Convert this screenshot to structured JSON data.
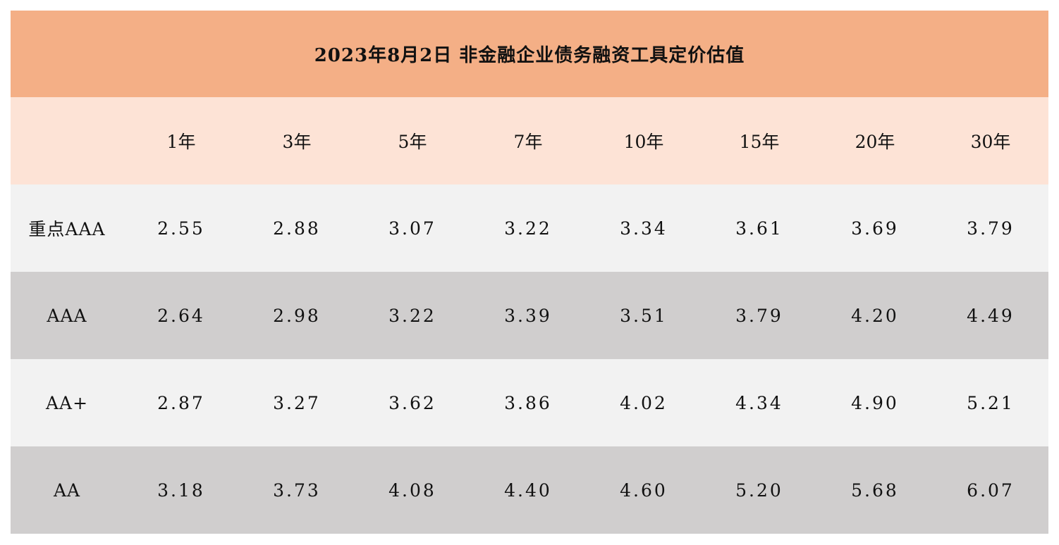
{
  "title": "2023年8月2日  非金融企业债务融资工具定价估值",
  "colors": {
    "title_bg": "#F4AF86",
    "header_bg": "#FDE3D6",
    "row_light": "#F2F2F2",
    "row_dark": "#D0CECE"
  },
  "columns": [
    "",
    "1年",
    "3年",
    "5年",
    "7年",
    "10年",
    "15年",
    "20年",
    "30年"
  ],
  "rows": [
    {
      "label": "重点AAA",
      "values": [
        "2.55",
        "2.88",
        "3.07",
        "3.22",
        "3.34",
        "3.61",
        "3.69",
        "3.79"
      ]
    },
    {
      "label": "AAA",
      "values": [
        "2.64",
        "2.98",
        "3.22",
        "3.39",
        "3.51",
        "3.79",
        "4.20",
        "4.49"
      ]
    },
    {
      "label": "AA+",
      "values": [
        "2.87",
        "3.27",
        "3.62",
        "3.86",
        "4.02",
        "4.34",
        "4.90",
        "5.21"
      ]
    },
    {
      "label": "AA",
      "values": [
        "3.18",
        "3.73",
        "4.08",
        "4.40",
        "4.60",
        "5.20",
        "5.68",
        "6.07"
      ]
    }
  ]
}
